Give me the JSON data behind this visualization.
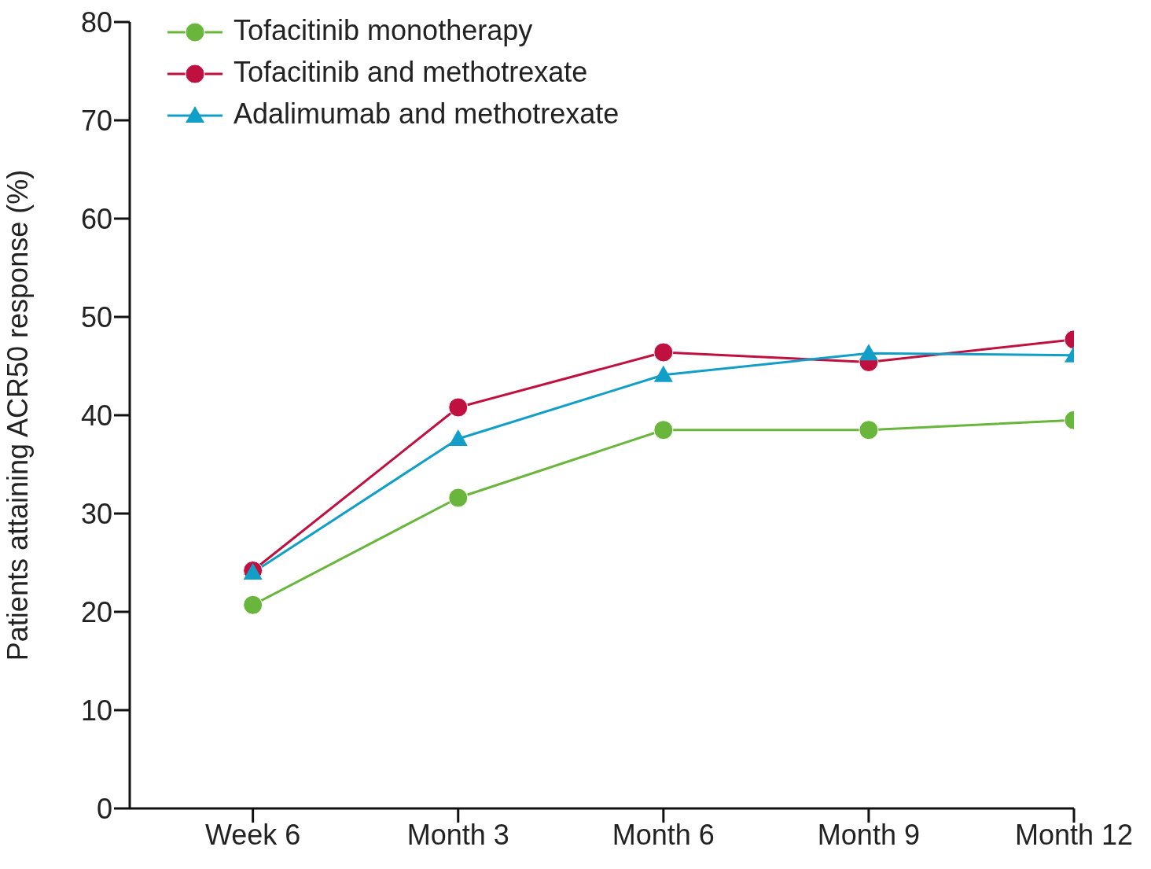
{
  "chart_data": {
    "type": "line",
    "ylabel": "Patients attaining ACR50 response (%)",
    "categories": [
      "Week 6",
      "Month 3",
      "Month 6",
      "Month 9",
      "Month 12"
    ],
    "ylim": [
      0,
      80
    ],
    "yticks": [
      0,
      10,
      20,
      30,
      40,
      50,
      60,
      70,
      80
    ],
    "grid": false,
    "legend": "top left",
    "series": [
      {
        "name": "Tofacitinib monotherapy",
        "color": "#6ab63c",
        "marker": "circle",
        "values": [
          20.7,
          31.6,
          38.5,
          38.5,
          39.5
        ]
      },
      {
        "name": "Tofacitinib and methotrexate",
        "color": "#c0103f",
        "marker": "circle",
        "values": [
          24.2,
          40.8,
          46.4,
          45.4,
          47.7
        ]
      },
      {
        "name": "Adalimumab and methotrexate",
        "color": "#119fc8",
        "marker": "triangle",
        "values": [
          24.0,
          37.6,
          44.1,
          46.3,
          46.1
        ]
      }
    ]
  }
}
